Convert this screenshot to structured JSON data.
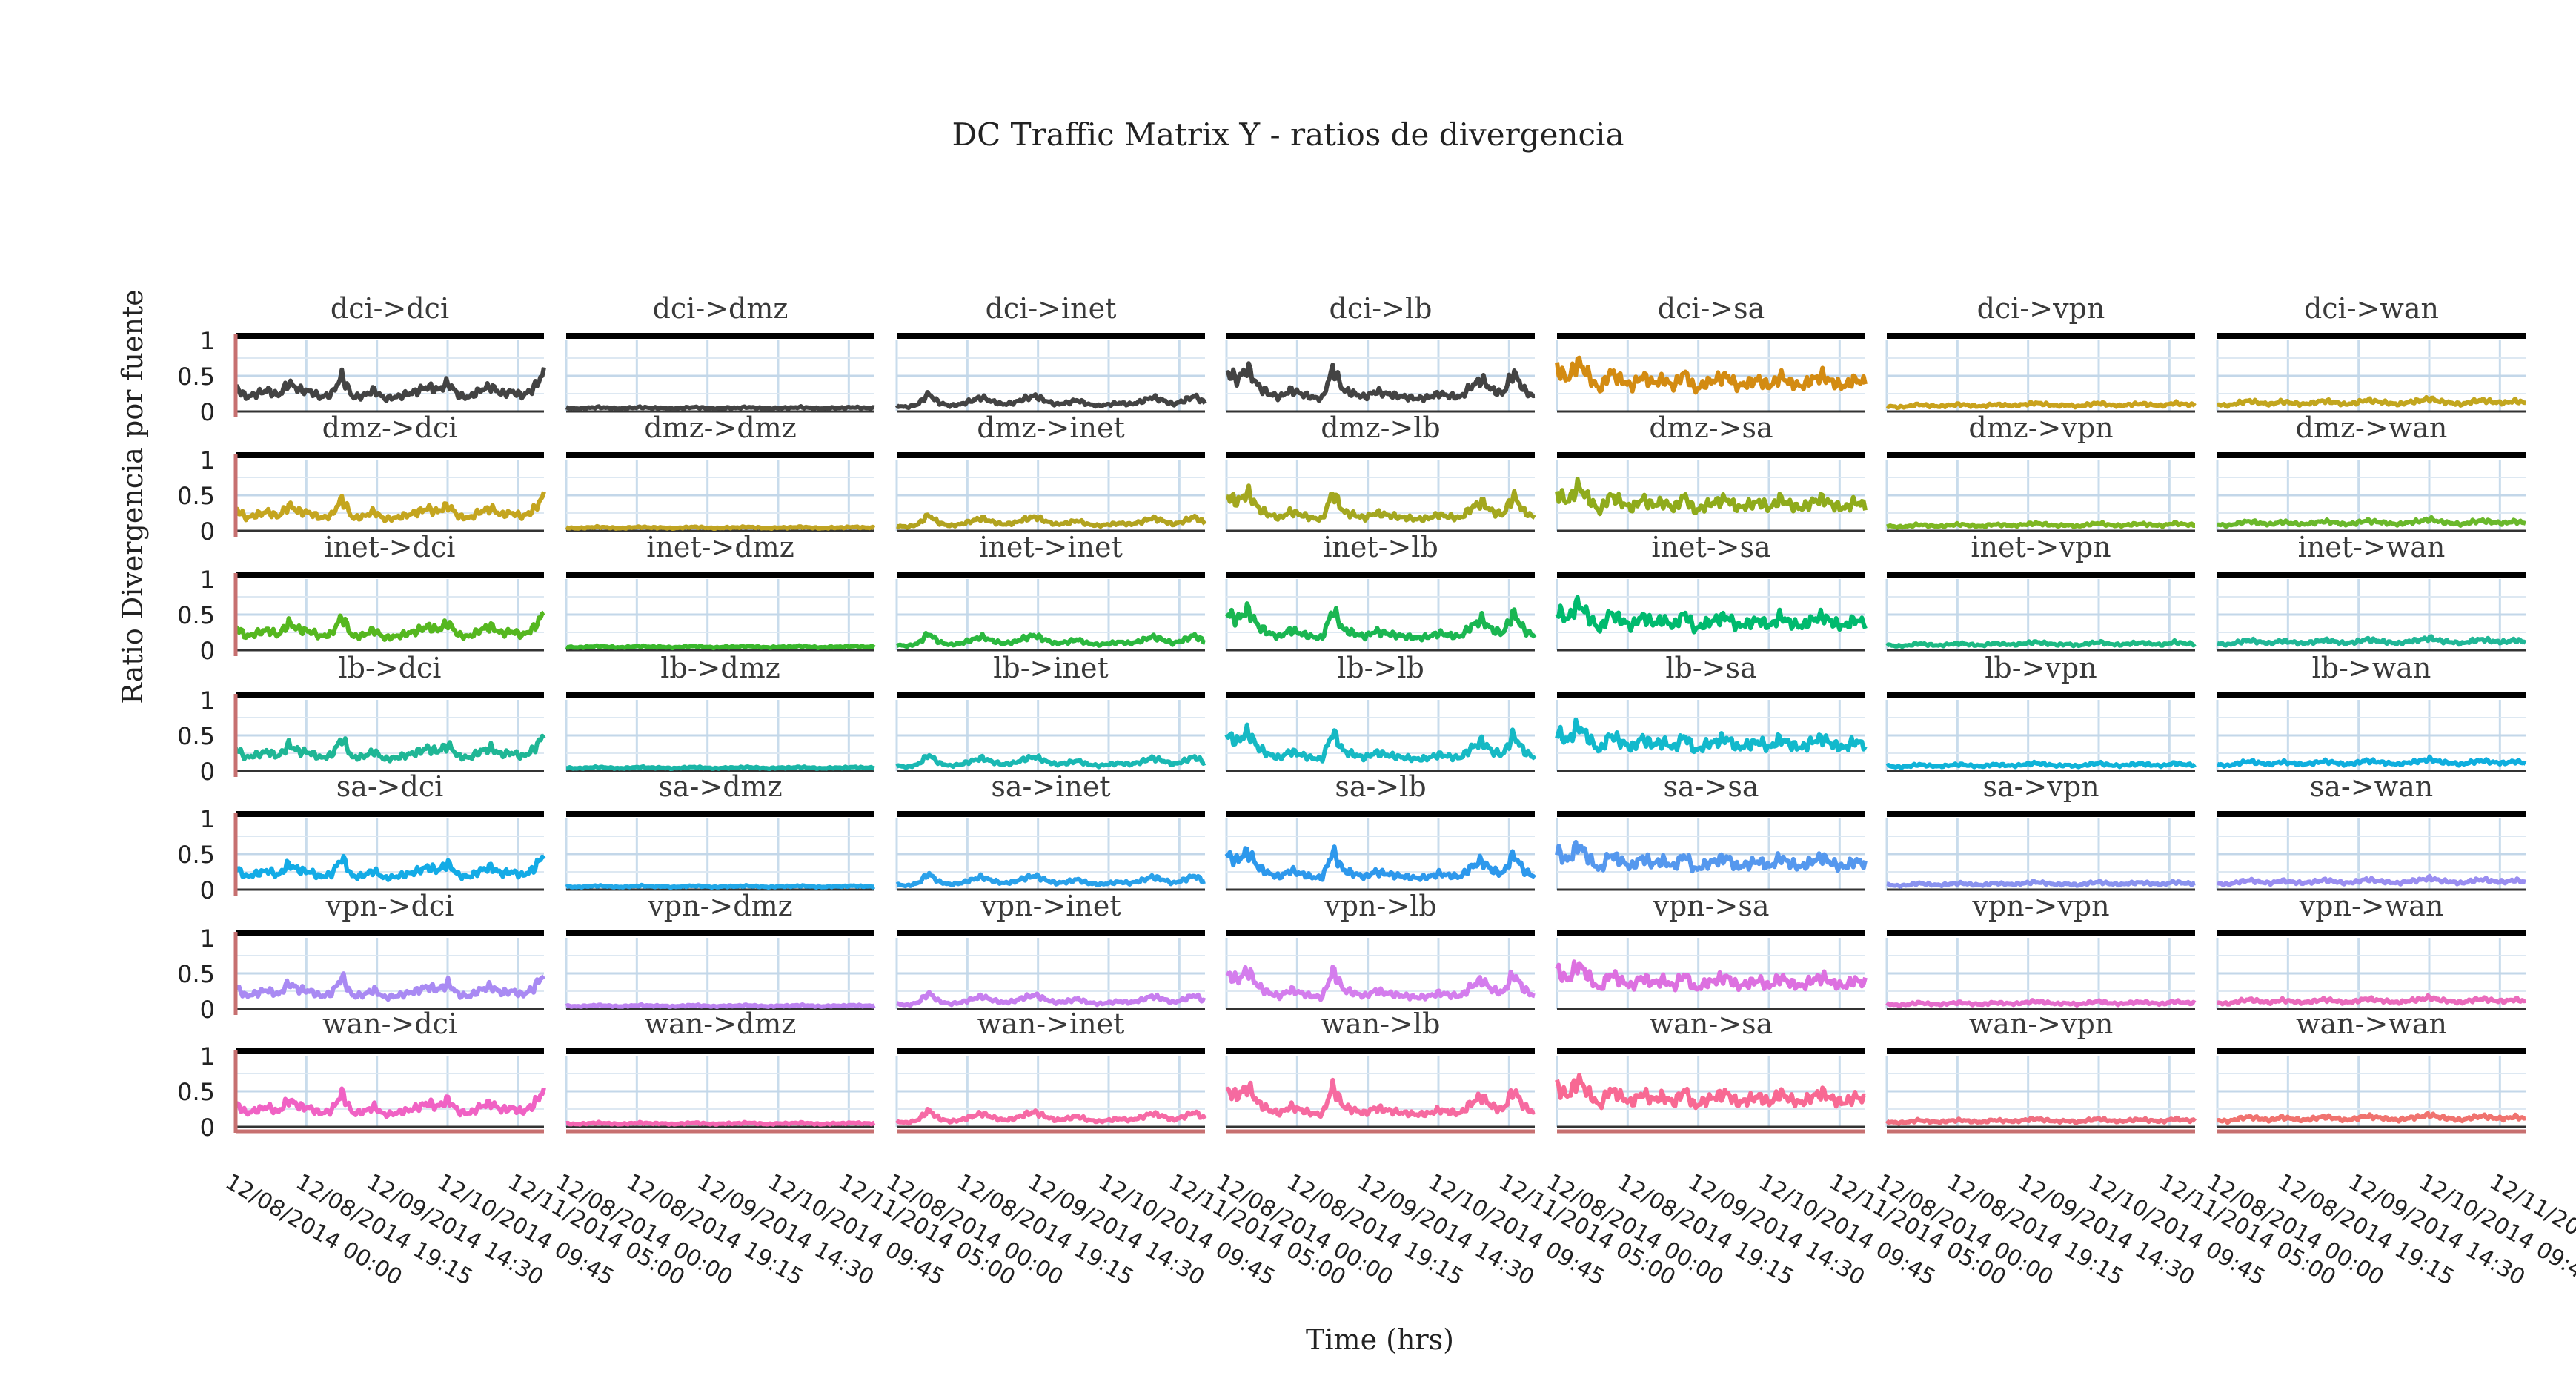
{
  "chart_data": {
    "type": "line",
    "layout": "facet-grid",
    "title": "DC Traffic Matrix Y - ratios de divergencia",
    "xlabel": "Time (hrs)",
    "ylabel": "Ratio Divergencia por fuente",
    "y_ticks": [
      "0",
      "0.5",
      "1"
    ],
    "ylim": [
      0,
      1
    ],
    "x_ticks": [
      "12/08/2014 00:00",
      "12/08/2014 19:15",
      "12/09/2014 14:30",
      "12/10/2014 09:45",
      "12/11/2014 05:00"
    ],
    "xlim": [
      "12/08/2014 00:00",
      "12/11/2014 12:00"
    ],
    "grid": true,
    "sources": [
      "dci",
      "dmz",
      "inet",
      "lb",
      "sa",
      "vpn",
      "wan"
    ],
    "destinations": [
      "dci",
      "dmz",
      "inet",
      "lb",
      "sa",
      "vpn",
      "wan"
    ],
    "panel_labels": [
      [
        "dci->dci",
        "dci->dmz",
        "dci->inet",
        "dci->lb",
        "dci->sa",
        "dci->vpn",
        "dci->wan"
      ],
      [
        "dmz->dci",
        "dmz->dmz",
        "dmz->inet",
        "dmz->lb",
        "dmz->sa",
        "dmz->vpn",
        "dmz->wan"
      ],
      [
        "inet->dci",
        "inet->dmz",
        "inet->inet",
        "inet->lb",
        "inet->sa",
        "inet->vpn",
        "inet->wan"
      ],
      [
        "lb->dci",
        "lb->dmz",
        "lb->inet",
        "lb->lb",
        "lb->sa",
        "lb->vpn",
        "lb->wan"
      ],
      [
        "sa->dci",
        "sa->dmz",
        "sa->inet",
        "sa->lb",
        "sa->sa",
        "sa->vpn",
        "sa->wan"
      ],
      [
        "vpn->dci",
        "vpn->dmz",
        "vpn->inet",
        "vpn->lb",
        "vpn->sa",
        "vpn->vpn",
        "vpn->wan"
      ],
      [
        "wan->dci",
        "wan->dmz",
        "wan->inet",
        "wan->lb",
        "wan->sa",
        "wan->vpn",
        "wan->wan"
      ]
    ],
    "colors": [
      [
        "#434343",
        "#434343",
        "#434343",
        "#434343",
        "#d38b12",
        "#c9a21c",
        "#c2a61e"
      ],
      [
        "#c4a51f",
        "#c0a423",
        "#b2a31f",
        "#a3a71f",
        "#8fab1c",
        "#7eb722",
        "#6ab82b"
      ],
      [
        "#55b71f",
        "#3ab82c",
        "#2bb83f",
        "#1ab651",
        "#00ba6e",
        "#1dba84",
        "#21b797"
      ],
      [
        "#1fb695",
        "#1ab6a7",
        "#1ab8b3",
        "#16b9c4",
        "#12b9cc",
        "#10b3d8",
        "#0faede"
      ],
      [
        "#13abe6",
        "#22a8e8",
        "#2aa1ea",
        "#2d98ec",
        "#5598ee",
        "#8a93ef",
        "#9a8ef1"
      ],
      [
        "#a98af3",
        "#bd84f1",
        "#c77fef",
        "#d47ded",
        "#dd70e0",
        "#e56dcc",
        "#ea6bbc"
      ],
      [
        "#f062c4",
        "#f566b2",
        "#f66aa5",
        "#f66aa0",
        "#f86993",
        "#ef6f80",
        "#f0736f"
      ]
    ],
    "series_profile": {
      "dci": [
        0.35,
        0.2,
        0.25,
        0.3,
        0.22,
        0.4,
        0.3,
        0.28,
        0.2,
        0.24,
        0.5,
        0.2,
        0.22,
        0.3,
        0.18,
        0.2,
        0.24,
        0.28,
        0.35,
        0.3,
        0.4,
        0.22,
        0.2,
        0.3,
        0.35,
        0.25,
        0.28,
        0.22,
        0.32,
        0.55
      ],
      "dmz": [
        0.05,
        0.04,
        0.05,
        0.06,
        0.05,
        0.04,
        0.05,
        0.06,
        0.05,
        0.05,
        0.04,
        0.05,
        0.06,
        0.05,
        0.04,
        0.05,
        0.05,
        0.06,
        0.05,
        0.04,
        0.05,
        0.05,
        0.06,
        0.05,
        0.04,
        0.05,
        0.05,
        0.06,
        0.05,
        0.05
      ],
      "inet": [
        0.08,
        0.06,
        0.1,
        0.25,
        0.12,
        0.08,
        0.1,
        0.15,
        0.2,
        0.14,
        0.1,
        0.12,
        0.18,
        0.22,
        0.15,
        0.1,
        0.12,
        0.16,
        0.1,
        0.08,
        0.1,
        0.12,
        0.1,
        0.14,
        0.2,
        0.16,
        0.1,
        0.15,
        0.22,
        0.12
      ],
      "lb": [
        0.55,
        0.45,
        0.6,
        0.35,
        0.25,
        0.2,
        0.3,
        0.25,
        0.2,
        0.18,
        0.6,
        0.3,
        0.25,
        0.2,
        0.28,
        0.25,
        0.22,
        0.2,
        0.18,
        0.2,
        0.25,
        0.22,
        0.2,
        0.35,
        0.45,
        0.3,
        0.25,
        0.55,
        0.3,
        0.2
      ],
      "sa": [
        0.6,
        0.45,
        0.7,
        0.5,
        0.3,
        0.55,
        0.45,
        0.35,
        0.5,
        0.4,
        0.45,
        0.35,
        0.55,
        0.3,
        0.4,
        0.45,
        0.5,
        0.35,
        0.4,
        0.45,
        0.35,
        0.5,
        0.4,
        0.35,
        0.45,
        0.5,
        0.4,
        0.35,
        0.45,
        0.4
      ],
      "vpn": [
        0.08,
        0.06,
        0.07,
        0.1,
        0.08,
        0.07,
        0.09,
        0.1,
        0.08,
        0.07,
        0.1,
        0.09,
        0.08,
        0.1,
        0.12,
        0.1,
        0.08,
        0.09,
        0.07,
        0.1,
        0.12,
        0.09,
        0.08,
        0.1,
        0.11,
        0.09,
        0.08,
        0.12,
        0.1,
        0.09
      ],
      "wan": [
        0.1,
        0.08,
        0.12,
        0.15,
        0.12,
        0.1,
        0.14,
        0.12,
        0.1,
        0.12,
        0.15,
        0.13,
        0.1,
        0.12,
        0.16,
        0.14,
        0.12,
        0.1,
        0.13,
        0.15,
        0.18,
        0.14,
        0.12,
        0.1,
        0.14,
        0.16,
        0.13,
        0.12,
        0.15,
        0.12
      ]
    }
  }
}
